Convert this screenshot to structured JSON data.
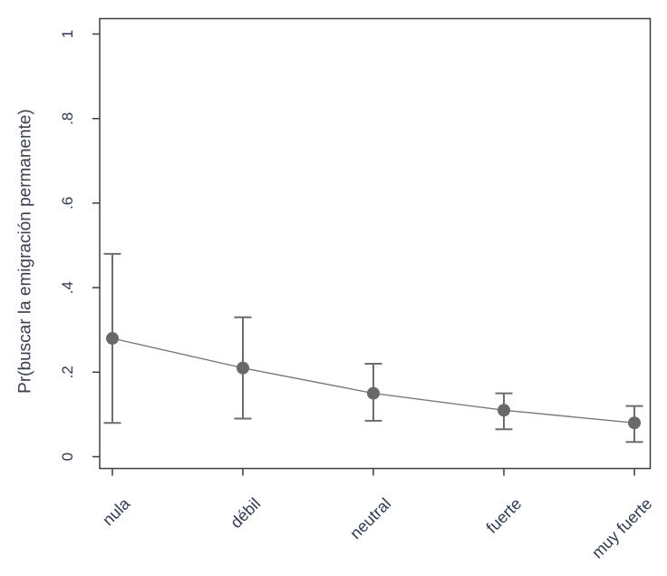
{
  "chart_data": {
    "type": "line",
    "title": "",
    "xlabel": "",
    "ylabel": "Pr(buscar la emigración permanente)",
    "categories": [
      "nula",
      "débil",
      "neutral",
      "fuerte",
      "muy fuerte"
    ],
    "series": [
      {
        "name": "Pr(buscar la emigración permanente)",
        "values": [
          0.28,
          0.21,
          0.15,
          0.11,
          0.08
        ],
        "ci_low": [
          0.08,
          0.09,
          0.085,
          0.065,
          0.035
        ],
        "ci_high": [
          0.48,
          0.33,
          0.22,
          0.15,
          0.12
        ]
      }
    ],
    "ylim": [
      0,
      1
    ],
    "yticks": [
      0,
      0.2,
      0.4,
      0.6,
      0.8,
      1
    ],
    "ytick_labels": [
      "0",
      ".2",
      ".4",
      ".6",
      ".8",
      "1"
    ],
    "x_tick_rotation_deg": -45,
    "grid": false,
    "legend": false,
    "marker": "circle",
    "error_bars": true,
    "colors": {
      "background": "#ffffff",
      "axis": "#3e3e3e",
      "text": "#2e3a54",
      "title_text": "#3a4150",
      "marker": "#696969",
      "error_bar": "#6e6e6e",
      "line": "#7a7a7a"
    }
  }
}
